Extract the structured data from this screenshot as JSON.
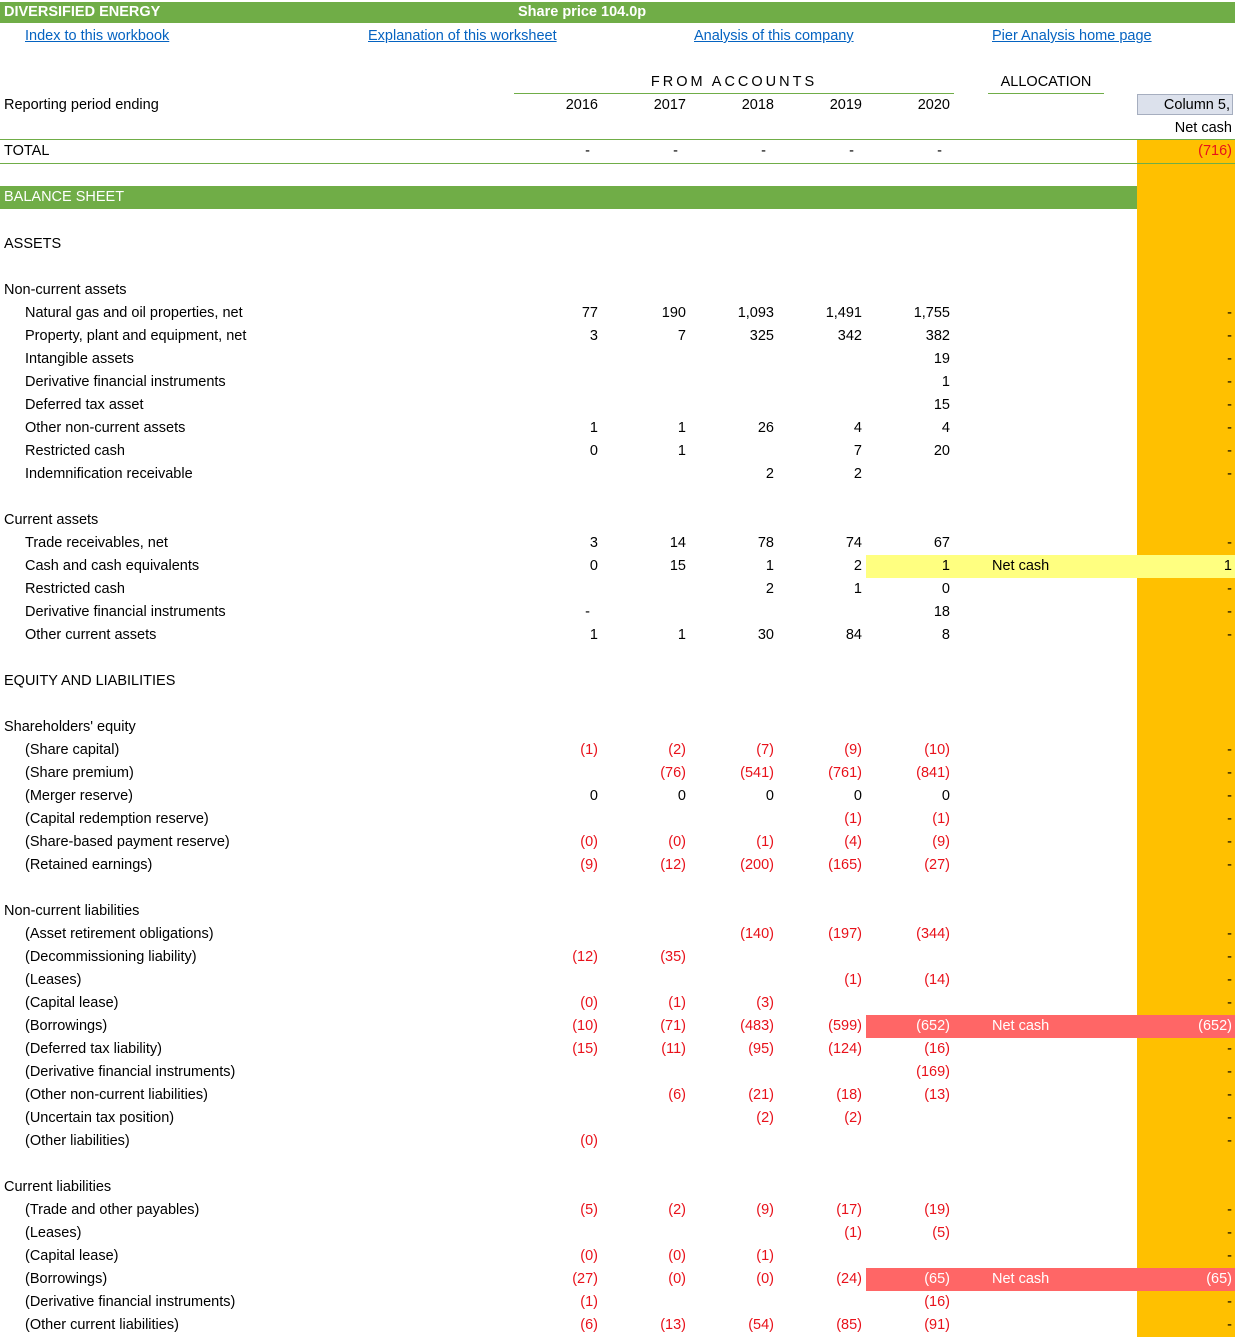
{
  "header": {
    "company": "DIVERSIFIED ENERGY",
    "share_price": "Share price 104.0p"
  },
  "links": [
    {
      "label": "Index to this workbook"
    },
    {
      "label": "Explanation of this worksheet"
    },
    {
      "label": "Analysis of this company"
    },
    {
      "label": "Pier Analysis home page"
    }
  ],
  "columns": {
    "from_accounts": "FROM ACCOUNTS",
    "allocation": "ALLOCATION",
    "period_label": "Reporting period ending",
    "years": [
      "2016",
      "2017",
      "2018",
      "2019",
      "2020"
    ],
    "col5_title": "Column 5,",
    "col5_sub": "Net cash"
  },
  "total": {
    "label": "TOTAL",
    "values": [
      "-",
      "-",
      "-",
      "-",
      "-"
    ],
    "col5": "(716)"
  },
  "sections": {
    "balance_sheet": "BALANCE SHEET",
    "assets": "ASSETS",
    "non_current_assets": "Non-current assets",
    "current_assets": "Current assets",
    "equity_liabilities": "EQUITY AND LIABILITIES",
    "shareholders_equity": "Shareholders' equity",
    "non_current_liabilities": "Non-current liabilities",
    "current_liabilities": "Current liabilities"
  },
  "rows": [
    {
      "label": "Natural gas and oil properties, net",
      "values": [
        "77",
        "190",
        "1,093",
        "1,491",
        "1,755"
      ],
      "alloc": "",
      "col5": "-"
    },
    {
      "label": "Property, plant and equipment, net",
      "values": [
        "3",
        "7",
        "325",
        "342",
        "382"
      ],
      "alloc": "",
      "col5": "-"
    },
    {
      "label": "Intangible assets",
      "values": [
        "",
        "",
        "",
        "",
        "19"
      ],
      "alloc": "",
      "col5": "-"
    },
    {
      "label": "Derivative financial instruments",
      "values": [
        "",
        "",
        "",
        "",
        "1"
      ],
      "alloc": "",
      "col5": "-"
    },
    {
      "label": "Deferred tax asset",
      "values": [
        "",
        "",
        "",
        "",
        "15"
      ],
      "alloc": "",
      "col5": "-"
    },
    {
      "label": "Other non-current assets",
      "values": [
        "1",
        "1",
        "26",
        "4",
        "4"
      ],
      "alloc": "",
      "col5": "-"
    },
    {
      "label": "Restricted cash",
      "values": [
        "0",
        "1",
        "",
        "7",
        "20"
      ],
      "alloc": "",
      "col5": "-"
    },
    {
      "label": "Indemnification receivable",
      "values": [
        "",
        "",
        "2",
        "2",
        ""
      ],
      "alloc": "",
      "col5": "-"
    },
    {
      "label": "Trade receivables, net",
      "values": [
        "3",
        "14",
        "78",
        "74",
        "67"
      ],
      "alloc": "",
      "col5": "-"
    },
    {
      "label": "Cash and cash equivalents",
      "values": [
        "0",
        "15",
        "1",
        "2",
        "1"
      ],
      "alloc": "Net cash",
      "col5": "1"
    },
    {
      "label": "Restricted cash",
      "values": [
        "",
        "",
        "2",
        "1",
        "0"
      ],
      "alloc": "",
      "col5": "-"
    },
    {
      "label": "Derivative financial instruments",
      "values": [
        "-",
        "",
        "",
        "",
        "18"
      ],
      "alloc": "",
      "col5": "-"
    },
    {
      "label": "Other current assets",
      "values": [
        "1",
        "1",
        "30",
        "84",
        "8"
      ],
      "alloc": "",
      "col5": "-"
    },
    {
      "label": "(Share capital)",
      "values": [
        "(1)",
        "(2)",
        "(7)",
        "(9)",
        "(10)"
      ],
      "alloc": "",
      "col5": "-"
    },
    {
      "label": "(Share premium)",
      "values": [
        "",
        "(76)",
        "(541)",
        "(761)",
        "(841)"
      ],
      "alloc": "",
      "col5": "-"
    },
    {
      "label": "(Merger reserve)",
      "values": [
        "0",
        "0",
        "0",
        "0",
        "0"
      ],
      "alloc": "",
      "col5": "-"
    },
    {
      "label": "(Capital redemption reserve)",
      "values": [
        "",
        "",
        "",
        "(1)",
        "(1)"
      ],
      "alloc": "",
      "col5": "-"
    },
    {
      "label": "(Share-based payment reserve)",
      "values": [
        "(0)",
        "(0)",
        "(1)",
        "(4)",
        "(9)"
      ],
      "alloc": "",
      "col5": "-"
    },
    {
      "label": "(Retained earnings)",
      "values": [
        "(9)",
        "(12)",
        "(200)",
        "(165)",
        "(27)"
      ],
      "alloc": "",
      "col5": "-"
    },
    {
      "label": "(Asset retirement obligations)",
      "values": [
        "",
        "",
        "(140)",
        "(197)",
        "(344)"
      ],
      "alloc": "",
      "col5": "-"
    },
    {
      "label": "(Decommissioning liability)",
      "values": [
        "(12)",
        "(35)",
        "",
        "",
        ""
      ],
      "alloc": "",
      "col5": "-"
    },
    {
      "label": "(Leases)",
      "values": [
        "",
        "",
        "",
        "(1)",
        "(14)"
      ],
      "alloc": "",
      "col5": "-"
    },
    {
      "label": "(Capital lease)",
      "values": [
        "(0)",
        "(1)",
        "(3)",
        "",
        ""
      ],
      "alloc": "",
      "col5": "-"
    },
    {
      "label": "(Borrowings)",
      "values": [
        "(10)",
        "(71)",
        "(483)",
        "(599)",
        "(652)"
      ],
      "alloc": "Net cash",
      "col5": "(652)"
    },
    {
      "label": "(Deferred tax liability)",
      "values": [
        "(15)",
        "(11)",
        "(95)",
        "(124)",
        "(16)"
      ],
      "alloc": "",
      "col5": "-"
    },
    {
      "label": "(Derivative financial instruments)",
      "values": [
        "",
        "",
        "",
        "",
        "(169)"
      ],
      "alloc": "",
      "col5": "-"
    },
    {
      "label": "(Other non-current liabilities)",
      "values": [
        "",
        "(6)",
        "(21)",
        "(18)",
        "(13)"
      ],
      "alloc": "",
      "col5": "-"
    },
    {
      "label": "(Uncertain tax position)",
      "values": [
        "",
        "",
        "(2)",
        "(2)",
        ""
      ],
      "alloc": "",
      "col5": "-"
    },
    {
      "label": "(Other liabilities)",
      "values": [
        "(0)",
        "",
        "",
        "",
        ""
      ],
      "alloc": "",
      "col5": "-"
    },
    {
      "label": "(Trade and other payables)",
      "values": [
        "(5)",
        "(2)",
        "(9)",
        "(17)",
        "(19)"
      ],
      "alloc": "",
      "col5": "-"
    },
    {
      "label": "(Leases)",
      "values": [
        "",
        "",
        "",
        "(1)",
        "(5)"
      ],
      "alloc": "",
      "col5": "-"
    },
    {
      "label": "(Capital lease)",
      "values": [
        "(0)",
        "(0)",
        "(1)",
        "",
        ""
      ],
      "alloc": "",
      "col5": "-"
    },
    {
      "label": "(Borrowings)",
      "values": [
        "(27)",
        "(0)",
        "(0)",
        "(24)",
        "(65)"
      ],
      "alloc": "Net cash",
      "col5": "(65)"
    },
    {
      "label": "(Derivative financial instruments)",
      "values": [
        "(1)",
        "",
        "",
        "",
        "(16)"
      ],
      "alloc": "",
      "col5": "-"
    },
    {
      "label": "(Other current liabilities)",
      "values": [
        "(6)",
        "(13)",
        "(54)",
        "(85)",
        "(91)"
      ],
      "alloc": "",
      "col5": "-"
    }
  ],
  "colors": {
    "green": "#70ad47",
    "orange": "#ffc000",
    "yellow_highlight": "#ffff80",
    "red_highlight": "#ff6666",
    "negative_text": "#e8111a",
    "link": "#0563c1"
  }
}
